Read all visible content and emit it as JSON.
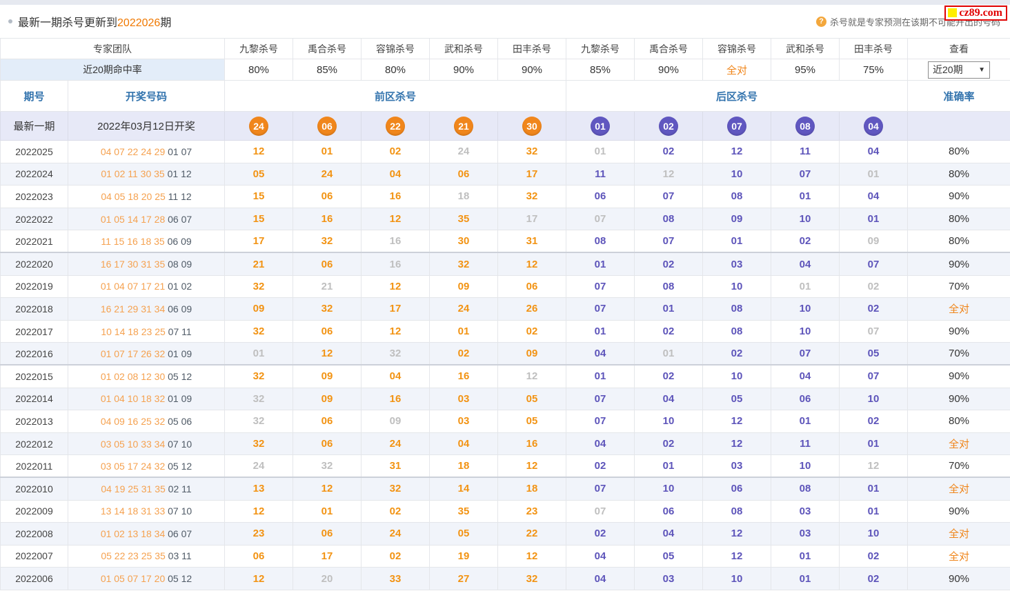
{
  "header": {
    "title_prefix": "最新一期杀号更新到",
    "title_period": "2022026",
    "title_suffix": "期",
    "note": "杀号就是专家预测在该期不可能开出的号码",
    "logo_text": "cz89.com"
  },
  "icons": {
    "question": "?",
    "caret": "▼"
  },
  "colors": {
    "front_kill": "#f29313",
    "back_kill": "#5d54ba",
    "missed_kill": "#bfbfbf",
    "accent_orange": "#f08519",
    "ball_front": "#f0861c",
    "ball_back": "#6057c0",
    "latest_row_bg": "#e7e9f7",
    "logo_red": "#e00000"
  },
  "table": {
    "team_header": "专家团队",
    "view_header": "查看",
    "hit_rate_label": "近20期命中率",
    "expert_headers": [
      "九黎杀号",
      "禹合杀号",
      "容锦杀号",
      "武和杀号",
      "田丰杀号",
      "九黎杀号",
      "禹合杀号",
      "容锦杀号",
      "武和杀号",
      "田丰杀号"
    ],
    "hit_rates": [
      "80%",
      "85%",
      "80%",
      "90%",
      "90%",
      "85%",
      "90%",
      "全对",
      "95%",
      "75%"
    ],
    "full_match_text": "全对",
    "range_select_value": "近20期",
    "columns": {
      "period": "期号",
      "draw": "开奖号码",
      "front_zone": "前区杀号",
      "back_zone": "后区杀号",
      "accuracy": "准确率"
    },
    "latest": {
      "label": "最新一期",
      "date": "2022年03月12日开奖",
      "front_balls": [
        "24",
        "06",
        "22",
        "21",
        "30"
      ],
      "back_balls": [
        "01",
        "02",
        "07",
        "08",
        "04"
      ]
    },
    "rows": [
      {
        "period": "2022025",
        "front": "04 07 22 24 29",
        "back": "01 07",
        "fk": [
          [
            "12",
            1
          ],
          [
            "01",
            1
          ],
          [
            "02",
            1
          ],
          [
            "24",
            0
          ],
          [
            "32",
            1
          ]
        ],
        "bk": [
          [
            "01",
            0
          ],
          [
            "02",
            1
          ],
          [
            "12",
            1
          ],
          [
            "11",
            1
          ],
          [
            "04",
            1
          ]
        ],
        "acc": "80%"
      },
      {
        "period": "2022024",
        "front": "01 02 11 30 35",
        "back": "01 12",
        "fk": [
          [
            "05",
            1
          ],
          [
            "24",
            1
          ],
          [
            "04",
            1
          ],
          [
            "06",
            1
          ],
          [
            "17",
            1
          ]
        ],
        "bk": [
          [
            "11",
            1
          ],
          [
            "12",
            0
          ],
          [
            "10",
            1
          ],
          [
            "07",
            1
          ],
          [
            "01",
            0
          ]
        ],
        "acc": "80%"
      },
      {
        "period": "2022023",
        "front": "04 05 18 20 25",
        "back": "11 12",
        "fk": [
          [
            "15",
            1
          ],
          [
            "06",
            1
          ],
          [
            "16",
            1
          ],
          [
            "18",
            0
          ],
          [
            "32",
            1
          ]
        ],
        "bk": [
          [
            "06",
            1
          ],
          [
            "07",
            1
          ],
          [
            "08",
            1
          ],
          [
            "01",
            1
          ],
          [
            "04",
            1
          ]
        ],
        "acc": "90%"
      },
      {
        "period": "2022022",
        "front": "01 05 14 17 28",
        "back": "06 07",
        "fk": [
          [
            "15",
            1
          ],
          [
            "16",
            1
          ],
          [
            "12",
            1
          ],
          [
            "35",
            1
          ],
          [
            "17",
            0
          ]
        ],
        "bk": [
          [
            "07",
            0
          ],
          [
            "08",
            1
          ],
          [
            "09",
            1
          ],
          [
            "10",
            1
          ],
          [
            "01",
            1
          ]
        ],
        "acc": "80%"
      },
      {
        "period": "2022021",
        "front": "11 15 16 18 35",
        "back": "06 09",
        "fk": [
          [
            "17",
            1
          ],
          [
            "32",
            1
          ],
          [
            "16",
            0
          ],
          [
            "30",
            1
          ],
          [
            "31",
            1
          ]
        ],
        "bk": [
          [
            "08",
            1
          ],
          [
            "07",
            1
          ],
          [
            "01",
            1
          ],
          [
            "02",
            1
          ],
          [
            "09",
            0
          ]
        ],
        "acc": "80%"
      },
      {
        "period": "2022020",
        "front": "16 17 30 31 35",
        "back": "08 09",
        "fk": [
          [
            "21",
            1
          ],
          [
            "06",
            1
          ],
          [
            "16",
            0
          ],
          [
            "32",
            1
          ],
          [
            "12",
            1
          ]
        ],
        "bk": [
          [
            "01",
            1
          ],
          [
            "02",
            1
          ],
          [
            "03",
            1
          ],
          [
            "04",
            1
          ],
          [
            "07",
            1
          ]
        ],
        "acc": "90%"
      },
      {
        "period": "2022019",
        "front": "01 04 07 17 21",
        "back": "01 02",
        "fk": [
          [
            "32",
            1
          ],
          [
            "21",
            0
          ],
          [
            "12",
            1
          ],
          [
            "09",
            1
          ],
          [
            "06",
            1
          ]
        ],
        "bk": [
          [
            "07",
            1
          ],
          [
            "08",
            1
          ],
          [
            "10",
            1
          ],
          [
            "01",
            0
          ],
          [
            "02",
            0
          ]
        ],
        "acc": "70%"
      },
      {
        "period": "2022018",
        "front": "16 21 29 31 34",
        "back": "06 09",
        "fk": [
          [
            "09",
            1
          ],
          [
            "32",
            1
          ],
          [
            "17",
            1
          ],
          [
            "24",
            1
          ],
          [
            "26",
            1
          ]
        ],
        "bk": [
          [
            "07",
            1
          ],
          [
            "01",
            1
          ],
          [
            "08",
            1
          ],
          [
            "10",
            1
          ],
          [
            "02",
            1
          ]
        ],
        "acc": "全对"
      },
      {
        "period": "2022017",
        "front": "10 14 18 23 25",
        "back": "07 11",
        "fk": [
          [
            "32",
            1
          ],
          [
            "06",
            1
          ],
          [
            "12",
            1
          ],
          [
            "01",
            1
          ],
          [
            "02",
            1
          ]
        ],
        "bk": [
          [
            "01",
            1
          ],
          [
            "02",
            1
          ],
          [
            "08",
            1
          ],
          [
            "10",
            1
          ],
          [
            "07",
            0
          ]
        ],
        "acc": "90%"
      },
      {
        "period": "2022016",
        "front": "01 07 17 26 32",
        "back": "01 09",
        "fk": [
          [
            "01",
            0
          ],
          [
            "12",
            1
          ],
          [
            "32",
            0
          ],
          [
            "02",
            1
          ],
          [
            "09",
            1
          ]
        ],
        "bk": [
          [
            "04",
            1
          ],
          [
            "01",
            0
          ],
          [
            "02",
            1
          ],
          [
            "07",
            1
          ],
          [
            "05",
            1
          ]
        ],
        "acc": "70%"
      },
      {
        "period": "2022015",
        "front": "01 02 08 12 30",
        "back": "05 12",
        "fk": [
          [
            "32",
            1
          ],
          [
            "09",
            1
          ],
          [
            "04",
            1
          ],
          [
            "16",
            1
          ],
          [
            "12",
            0
          ]
        ],
        "bk": [
          [
            "01",
            1
          ],
          [
            "02",
            1
          ],
          [
            "10",
            1
          ],
          [
            "04",
            1
          ],
          [
            "07",
            1
          ]
        ],
        "acc": "90%"
      },
      {
        "period": "2022014",
        "front": "01 04 10 18 32",
        "back": "01 09",
        "fk": [
          [
            "32",
            0
          ],
          [
            "09",
            1
          ],
          [
            "16",
            1
          ],
          [
            "03",
            1
          ],
          [
            "05",
            1
          ]
        ],
        "bk": [
          [
            "07",
            1
          ],
          [
            "04",
            1
          ],
          [
            "05",
            1
          ],
          [
            "06",
            1
          ],
          [
            "10",
            1
          ]
        ],
        "acc": "90%"
      },
      {
        "period": "2022013",
        "front": "04 09 16 25 32",
        "back": "05 06",
        "fk": [
          [
            "32",
            0
          ],
          [
            "06",
            1
          ],
          [
            "09",
            0
          ],
          [
            "03",
            1
          ],
          [
            "05",
            1
          ]
        ],
        "bk": [
          [
            "07",
            1
          ],
          [
            "10",
            1
          ],
          [
            "12",
            1
          ],
          [
            "01",
            1
          ],
          [
            "02",
            1
          ]
        ],
        "acc": "80%"
      },
      {
        "period": "2022012",
        "front": "03 05 10 33 34",
        "back": "07 10",
        "fk": [
          [
            "32",
            1
          ],
          [
            "06",
            1
          ],
          [
            "24",
            1
          ],
          [
            "04",
            1
          ],
          [
            "16",
            1
          ]
        ],
        "bk": [
          [
            "04",
            1
          ],
          [
            "02",
            1
          ],
          [
            "12",
            1
          ],
          [
            "11",
            1
          ],
          [
            "01",
            1
          ]
        ],
        "acc": "全对"
      },
      {
        "period": "2022011",
        "front": "03 05 17 24 32",
        "back": "05 12",
        "fk": [
          [
            "24",
            0
          ],
          [
            "32",
            0
          ],
          [
            "31",
            1
          ],
          [
            "18",
            1
          ],
          [
            "12",
            1
          ]
        ],
        "bk": [
          [
            "02",
            1
          ],
          [
            "01",
            1
          ],
          [
            "03",
            1
          ],
          [
            "10",
            1
          ],
          [
            "12",
            0
          ]
        ],
        "acc": "70%"
      },
      {
        "period": "2022010",
        "front": "04 19 25 31 35",
        "back": "02 11",
        "fk": [
          [
            "13",
            1
          ],
          [
            "12",
            1
          ],
          [
            "32",
            1
          ],
          [
            "14",
            1
          ],
          [
            "18",
            1
          ]
        ],
        "bk": [
          [
            "07",
            1
          ],
          [
            "10",
            1
          ],
          [
            "06",
            1
          ],
          [
            "08",
            1
          ],
          [
            "01",
            1
          ]
        ],
        "acc": "全对"
      },
      {
        "period": "2022009",
        "front": "13 14 18 31 33",
        "back": "07 10",
        "fk": [
          [
            "12",
            1
          ],
          [
            "01",
            1
          ],
          [
            "02",
            1
          ],
          [
            "35",
            1
          ],
          [
            "23",
            1
          ]
        ],
        "bk": [
          [
            "07",
            0
          ],
          [
            "06",
            1
          ],
          [
            "08",
            1
          ],
          [
            "03",
            1
          ],
          [
            "01",
            1
          ]
        ],
        "acc": "90%"
      },
      {
        "period": "2022008",
        "front": "01 02 13 18 34",
        "back": "06 07",
        "fk": [
          [
            "23",
            1
          ],
          [
            "06",
            1
          ],
          [
            "24",
            1
          ],
          [
            "05",
            1
          ],
          [
            "22",
            1
          ]
        ],
        "bk": [
          [
            "02",
            1
          ],
          [
            "04",
            1
          ],
          [
            "12",
            1
          ],
          [
            "03",
            1
          ],
          [
            "10",
            1
          ]
        ],
        "acc": "全对"
      },
      {
        "period": "2022007",
        "front": "05 22 23 25 35",
        "back": "03 11",
        "fk": [
          [
            "06",
            1
          ],
          [
            "17",
            1
          ],
          [
            "02",
            1
          ],
          [
            "19",
            1
          ],
          [
            "12",
            1
          ]
        ],
        "bk": [
          [
            "04",
            1
          ],
          [
            "05",
            1
          ],
          [
            "12",
            1
          ],
          [
            "01",
            1
          ],
          [
            "02",
            1
          ]
        ],
        "acc": "全对"
      },
      {
        "period": "2022006",
        "front": "01 05 07 17 20",
        "back": "05 12",
        "fk": [
          [
            "12",
            1
          ],
          [
            "20",
            0
          ],
          [
            "33",
            1
          ],
          [
            "27",
            1
          ],
          [
            "32",
            1
          ]
        ],
        "bk": [
          [
            "04",
            1
          ],
          [
            "03",
            1
          ],
          [
            "10",
            1
          ],
          [
            "01",
            1
          ],
          [
            "02",
            1
          ]
        ],
        "acc": "90%"
      }
    ]
  }
}
